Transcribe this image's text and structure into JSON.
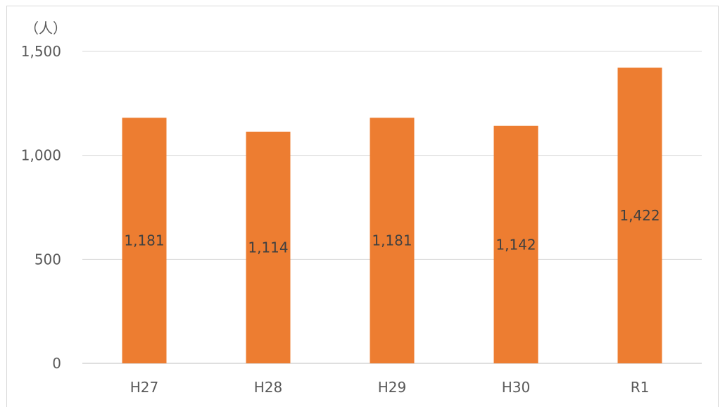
{
  "chart_data": {
    "type": "bar",
    "title": "",
    "xlabel": "",
    "ylabel": "",
    "unit_label": "（人）",
    "categories": [
      "H27",
      "H28",
      "H29",
      "H30",
      "R1"
    ],
    "values": [
      1181,
      1114,
      1181,
      1142,
      1422
    ],
    "data_labels": [
      "1,181",
      "1,114",
      "1,181",
      "1,142",
      "1,422"
    ],
    "ylim": [
      0,
      1500
    ],
    "yticks": [
      0,
      500,
      1000,
      1500
    ],
    "ytick_labels": [
      "0",
      "500",
      "1,000",
      "1,500"
    ],
    "grid": true,
    "legend": "none",
    "bar_color": "#ED7D31",
    "grid_color": "#D9D9D9"
  }
}
